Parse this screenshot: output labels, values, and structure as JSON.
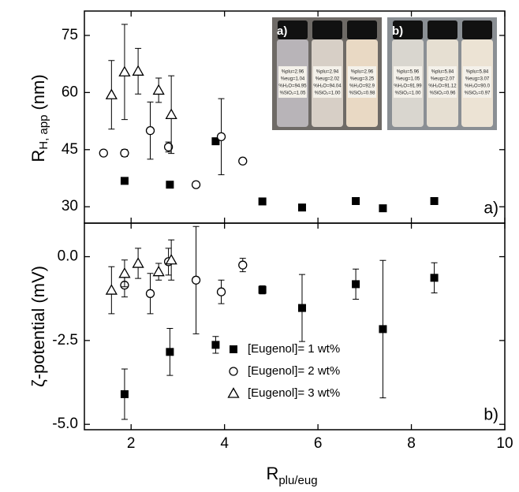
{
  "chart_data": [
    {
      "type": "scatter",
      "panel_label": "a)",
      "ylabel": {
        "main": "R",
        "sub": "H, app",
        "unit": "(nm)"
      },
      "xlim": [
        1,
        10
      ],
      "ylim": [
        25.7,
        81.4
      ],
      "yticks": [
        30,
        45,
        60,
        75
      ],
      "series": [
        {
          "name": "[Eugenol]= 1 wt%",
          "marker": "square",
          "color": "#000000",
          "x": [
            1.86,
            2.83,
            3.81,
            4.81,
            5.66,
            6.81,
            7.39,
            8.49
          ],
          "values": [
            36.8,
            35.8,
            47.2,
            31.4,
            29.8,
            31.5,
            29.6,
            31.5
          ],
          "errors": [
            0.6,
            0.6,
            0.8,
            0.6,
            0.6,
            0.6,
            0.5,
            0.6
          ]
        },
        {
          "name": "[Eugenol]= 2 wt%",
          "marker": "circle",
          "color": "#000000",
          "x": [
            1.41,
            1.86,
            2.41,
            2.8,
            3.39,
            3.93,
            4.39
          ],
          "values": [
            44.1,
            44.1,
            50.0,
            45.7,
            35.8,
            48.4,
            42.0
          ],
          "errors": [
            0.6,
            0.9,
            7.5,
            1.3,
            0.7,
            10.0,
            0.7
          ]
        },
        {
          "name": "[Eugenol]= 3 wt%",
          "marker": "triangle",
          "color": "#000000",
          "x": [
            1.58,
            1.86,
            2.15,
            2.59,
            2.86
          ],
          "values": [
            59.4,
            65.4,
            65.6,
            60.6,
            54.2
          ],
          "errors": [
            9.0,
            12.5,
            6.0,
            3.2,
            10.2
          ]
        }
      ]
    },
    {
      "type": "scatter",
      "panel_label": "b)",
      "ylabel": "ζ-potential  (mV)",
      "xlabel": {
        "main": "R",
        "sub": "plu/eug"
      },
      "xlim": [
        1,
        10
      ],
      "xticks": [
        2,
        4,
        6,
        8,
        10
      ],
      "ylim": [
        -5.16,
        1.0
      ],
      "yticks": [
        {
          "value": -5,
          "label": "-5.0"
        },
        {
          "value": -2.5,
          "label": "-2.5"
        },
        {
          "value": 0,
          "label": "0.0"
        }
      ],
      "legend": "bottom-center",
      "series": [
        {
          "name": "[Eugenol]= 1 wt%",
          "marker": "square",
          "color": "#000000",
          "x": [
            1.86,
            2.83,
            3.81,
            4.81,
            5.66,
            6.81,
            7.39,
            8.49
          ],
          "values": [
            -4.1,
            -2.84,
            -2.63,
            -0.99,
            -1.53,
            -0.82,
            -2.16,
            -0.63
          ],
          "errors": [
            0.75,
            0.7,
            0.25,
            0.12,
            1.0,
            0.45,
            2.05,
            0.45
          ]
        },
        {
          "name": "[Eugenol]= 2 wt%",
          "marker": "circle",
          "color": "#000000",
          "x": [
            1.86,
            2.41,
            2.8,
            3.39,
            3.93,
            4.39
          ],
          "values": [
            -0.85,
            -1.1,
            -0.15,
            -0.7,
            -1.05,
            -0.25
          ],
          "errors": [
            0.35,
            0.6,
            0.4,
            1.6,
            0.35,
            0.2
          ]
        },
        {
          "name": "[Eugenol]= 3 wt%",
          "marker": "triangle",
          "color": "#000000",
          "x": [
            1.58,
            1.86,
            2.15,
            2.59,
            2.86
          ],
          "values": [
            -1.0,
            -0.5,
            -0.2,
            -0.45,
            -0.1
          ],
          "errors": [
            0.7,
            0.4,
            0.45,
            0.25,
            0.6
          ]
        }
      ]
    }
  ],
  "inset": [
    {
      "label": "a)",
      "bottles": [
        [
          "%plu=2.96",
          "%eug=1.04",
          "%H₂O=94.95",
          "%SiO₂=1.05"
        ],
        [
          "%plu=2.94",
          "%eug=2.02",
          "%H₂O=94.04",
          "%SiO₂=1.00"
        ],
        [
          "%plu=2.96",
          "%eug=3.25",
          "%H₂O=92.9",
          "%SiO₂=0.98"
        ]
      ]
    },
    {
      "label": "b)",
      "bottles": [
        [
          "%plu=5.96",
          "%eug=1.05",
          "%H₂O=91.99",
          "%SiO₂=1.00"
        ],
        [
          "%plu=5.84",
          "%eug=2.07",
          "%H₂O=91.12",
          "%SiO₂=0.96"
        ],
        [
          "%plu=5.84",
          "%eug=3.07",
          "%H₂O=90.0",
          "%SiO₂=0.97"
        ]
      ]
    }
  ]
}
